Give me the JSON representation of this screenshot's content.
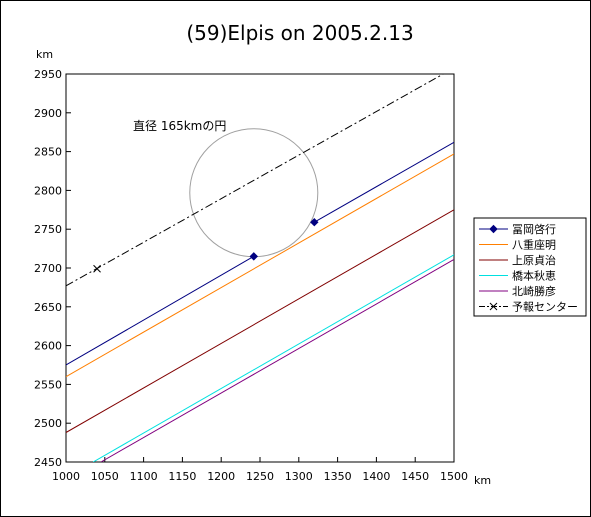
{
  "chart_data": {
    "type": "line",
    "title": "(59)Elpis on 2005.2.13",
    "xlabel": "km",
    "ylabel": "km",
    "xlim": [
      1000,
      1500
    ],
    "ylim": [
      2450,
      2950
    ],
    "xticks": [
      1000,
      1050,
      1100,
      1150,
      1200,
      1250,
      1300,
      1350,
      1400,
      1450,
      1500
    ],
    "yticks": [
      2450,
      2500,
      2550,
      2600,
      2650,
      2700,
      2750,
      2800,
      2850,
      2900,
      2950
    ],
    "grid": false,
    "legend_position": "right",
    "annotation": "直径 165kmの円",
    "circle": {
      "center": [
        1242,
        2797
      ],
      "diameter": 165,
      "color": "#a0a0a0"
    },
    "series": [
      {
        "name": "冨岡啓行",
        "color": "#000080",
        "marker": "diamond",
        "segments": [
          {
            "points": [
              [
                1000,
                2575
              ],
              [
                1242,
                2715
              ]
            ],
            "marker_at_end": true
          },
          {
            "points": [
              [
                1320,
                2759
              ],
              [
                1500,
                2862
              ]
            ],
            "marker_at_start": true
          }
        ]
      },
      {
        "name": "八重座明",
        "color": "#ff7f00",
        "segments": [
          {
            "points": [
              [
                1000,
                2560
              ],
              [
                1500,
                2847
              ]
            ]
          }
        ]
      },
      {
        "name": "上原貞治",
        "color": "#800000",
        "segments": [
          {
            "points": [
              [
                1000,
                2488
              ],
              [
                1500,
                2775
              ]
            ]
          }
        ]
      },
      {
        "name": "橋本秋恵",
        "color": "#00e0e0",
        "segments": [
          {
            "points": [
              [
                1035,
                2450
              ],
              [
                1500,
                2717
              ]
            ]
          }
        ]
      },
      {
        "name": "北崎勝彦",
        "color": "#800080",
        "segments": [
          {
            "points": [
              [
                1045,
                2450
              ],
              [
                1500,
                2711
              ]
            ]
          }
        ]
      },
      {
        "name": "予報センター",
        "color": "#000000",
        "dash": "dashdot",
        "marker": "x",
        "marker_points": [
          [
            1040,
            2699
          ]
        ],
        "segments": [
          {
            "points": [
              [
                1000,
                2677
              ],
              [
                1495,
                2955
              ]
            ]
          }
        ]
      }
    ]
  }
}
